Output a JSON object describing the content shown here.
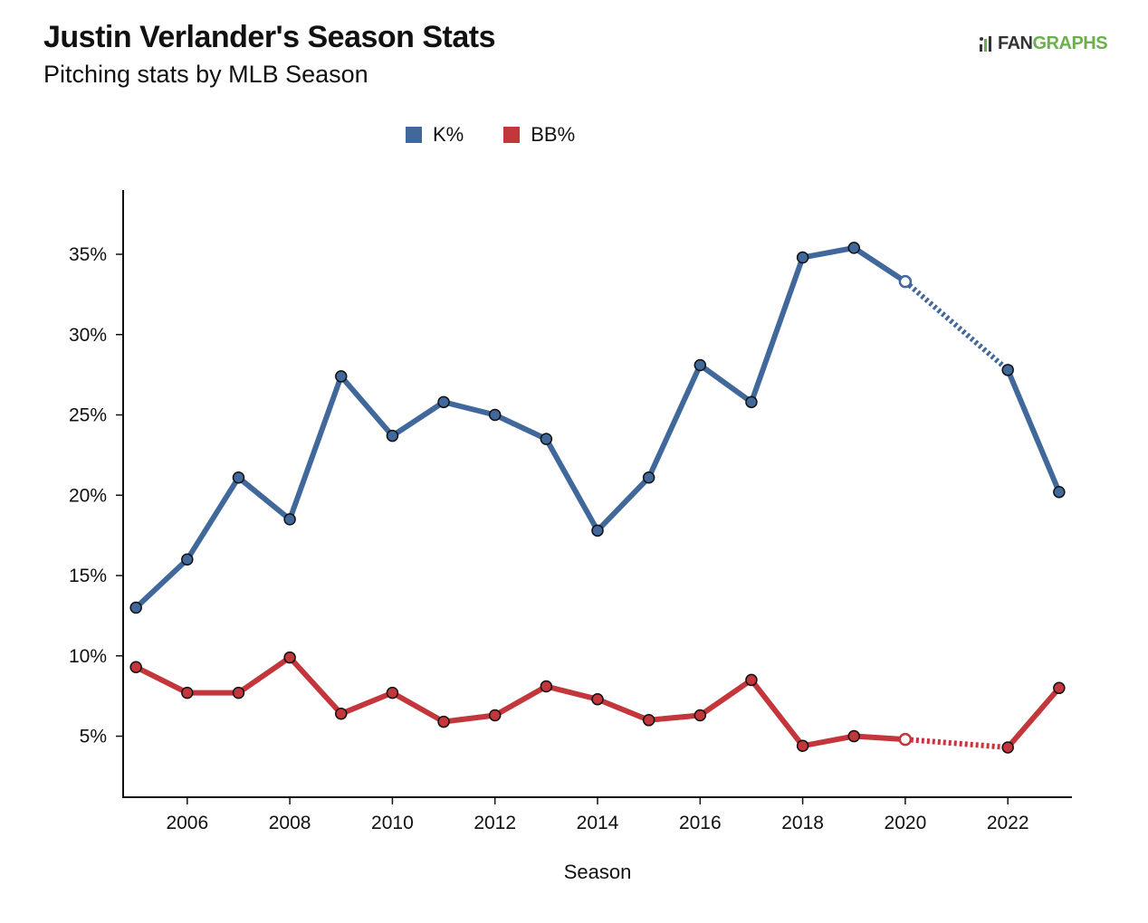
{
  "header": {
    "title": "Justin Verlander's Season Stats",
    "subtitle": "Pitching stats by MLB Season",
    "logo_left": "FAN",
    "logo_right": "GRAPHS"
  },
  "colors": {
    "k_pct": "#41689b",
    "bb_pct": "#c2363c",
    "axis": "#111111",
    "logo_green": "#6ab04c"
  },
  "chart_data": {
    "type": "line",
    "title": "Justin Verlander's Season Stats",
    "subtitle": "Pitching stats by MLB Season",
    "xlabel": "Season",
    "ylabel": "",
    "xlim": [
      2004.75,
      2023.25
    ],
    "ylim": [
      1.2,
      39
    ],
    "x_ticks": [
      2006,
      2008,
      2010,
      2012,
      2014,
      2016,
      2018,
      2020,
      2022
    ],
    "x_tick_labels": [
      "2006",
      "2008",
      "2010",
      "2012",
      "2014",
      "2016",
      "2018",
      "2020",
      "2022"
    ],
    "y_ticks": [
      5,
      10,
      15,
      20,
      25,
      30,
      35
    ],
    "y_tick_labels": [
      "5%",
      "10%",
      "15%",
      "20%",
      "25%",
      "30%",
      "35%"
    ],
    "grid": false,
    "legend_position": "top-center",
    "note": "",
    "series": [
      {
        "name": "K%",
        "color": "#41689b",
        "points": [
          {
            "x": 2005,
            "y": 13.0
          },
          {
            "x": 2006,
            "y": 16.0
          },
          {
            "x": 2007,
            "y": 21.1
          },
          {
            "x": 2008,
            "y": 18.5
          },
          {
            "x": 2009,
            "y": 27.4
          },
          {
            "x": 2010,
            "y": 23.7
          },
          {
            "x": 2011,
            "y": 25.8
          },
          {
            "x": 2012,
            "y": 25.0
          },
          {
            "x": 2013,
            "y": 23.5
          },
          {
            "x": 2014,
            "y": 17.8
          },
          {
            "x": 2015,
            "y": 21.1
          },
          {
            "x": 2016,
            "y": 28.1
          },
          {
            "x": 2017,
            "y": 25.8
          },
          {
            "x": 2018,
            "y": 34.8
          },
          {
            "x": 2019,
            "y": 35.4
          },
          {
            "x": 2020,
            "y": 33.3
          },
          {
            "x": 2022,
            "y": 27.8
          },
          {
            "x": 2023,
            "y": 20.2
          }
        ]
      },
      {
        "name": "BB%",
        "color": "#c2363c",
        "points": [
          {
            "x": 2005,
            "y": 9.3
          },
          {
            "x": 2006,
            "y": 7.7
          },
          {
            "x": 2007,
            "y": 7.7
          },
          {
            "x": 2008,
            "y": 9.9
          },
          {
            "x": 2009,
            "y": 6.4
          },
          {
            "x": 2010,
            "y": 7.7
          },
          {
            "x": 2011,
            "y": 5.9
          },
          {
            "x": 2012,
            "y": 6.3
          },
          {
            "x": 2013,
            "y": 8.1
          },
          {
            "x": 2014,
            "y": 7.3
          },
          {
            "x": 2015,
            "y": 6.0
          },
          {
            "x": 2016,
            "y": 6.3
          },
          {
            "x": 2017,
            "y": 8.5
          },
          {
            "x": 2018,
            "y": 4.4
          },
          {
            "x": 2019,
            "y": 5.0
          },
          {
            "x": 2020,
            "y": 4.8
          },
          {
            "x": 2022,
            "y": 4.3
          },
          {
            "x": 2023,
            "y": 8.0
          }
        ]
      }
    ]
  }
}
